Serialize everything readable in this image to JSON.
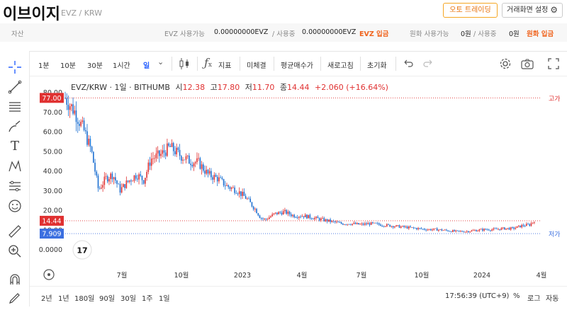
{
  "header": {
    "coin_name": "이브이지",
    "pair": "EVZ / KRW",
    "auto_trading_label": "오토 트레이딩",
    "screen_settings_label": "거래화면 설정"
  },
  "asset_bar": {
    "asset_label": "자산",
    "evz_available_label": "EVZ 사용가능",
    "evz_available_value": "0.00000000EVZ",
    "evz_in_use_label": "/ 사용중",
    "evz_in_use_value": "0.00000000EVZ",
    "evz_deposit_label": "EVZ 입금",
    "krw_available_label": "원화 사용가능",
    "krw_available_value": "0원",
    "krw_in_use_label": "/ 사용중",
    "krw_in_use_value": "0원",
    "krw_deposit_label": "원화 입금"
  },
  "toolbar": {
    "intervals": [
      "1분",
      "10분",
      "30분",
      "1시간",
      "일"
    ],
    "active_interval": "일",
    "indicator_label": "지표",
    "not_concluded_label": "미체결",
    "avg_price_label": "평균매수가",
    "refresh_label": "새로고침",
    "reset_label": "초기화"
  },
  "legend": {
    "title": "EVZ/KRW · 1일 · BITHUMB",
    "open_label": "시",
    "open_value": "12.38",
    "high_label": "고",
    "high_value": "17.80",
    "low_label": "저",
    "low_value": "11.70",
    "close_label": "종",
    "close_value": "14.44",
    "change": "+2.060 (+16.64%)"
  },
  "bottom_bar": {
    "ranges": [
      "2년",
      "1년",
      "180일",
      "90일",
      "30일",
      "1주",
      "1일"
    ],
    "time": "17:56:39 (UTC+9)",
    "percent_label": "%",
    "log_label": "로그",
    "auto_label": "자동"
  },
  "colors": {
    "up": "#e03131",
    "down": "#1c6fd1",
    "accent": "#f0641e",
    "high_marker": "#e03131",
    "low_marker": "#3b6fe0"
  },
  "chart_data": {
    "type": "candlestick",
    "y_ticks": [
      "80.00",
      "70.00",
      "60.00",
      "50.00",
      "40.00",
      "30.00",
      "20.00",
      "10.00",
      "0.0000"
    ],
    "y_tick_values": [
      80,
      70,
      60,
      50,
      40,
      30,
      20,
      10,
      0
    ],
    "x_ticks": [
      "7월",
      "10월",
      "2023",
      "4월",
      "7월",
      "10월",
      "2024",
      "4월"
    ],
    "price_markers": [
      {
        "label": "77.00",
        "value": 77.0,
        "kind": "high"
      },
      {
        "label": "14.44",
        "value": 14.44,
        "kind": "current"
      },
      {
        "label": "7.909",
        "value": 7.909,
        "kind": "low"
      }
    ],
    "right_labels": {
      "high": "고가",
      "low": "저가"
    },
    "trend": [
      [
        0.0,
        77
      ],
      [
        0.02,
        70
      ],
      [
        0.04,
        60
      ],
      [
        0.055,
        50
      ],
      [
        0.07,
        30
      ],
      [
        0.085,
        36
      ],
      [
        0.1,
        38
      ],
      [
        0.115,
        30
      ],
      [
        0.13,
        34
      ],
      [
        0.15,
        38
      ],
      [
        0.165,
        35
      ],
      [
        0.18,
        46
      ],
      [
        0.2,
        48
      ],
      [
        0.22,
        52
      ],
      [
        0.24,
        48
      ],
      [
        0.26,
        45
      ],
      [
        0.28,
        44
      ],
      [
        0.3,
        38
      ],
      [
        0.32,
        36
      ],
      [
        0.34,
        32
      ],
      [
        0.36,
        30
      ],
      [
        0.38,
        26
      ],
      [
        0.4,
        20
      ],
      [
        0.41,
        16
      ],
      [
        0.42,
        15
      ],
      [
        0.44,
        18
      ],
      [
        0.46,
        19
      ],
      [
        0.48,
        17
      ],
      [
        0.5,
        17
      ],
      [
        0.52,
        16
      ],
      [
        0.54,
        15
      ],
      [
        0.56,
        14
      ],
      [
        0.58,
        13
      ],
      [
        0.6,
        13
      ],
      [
        0.62,
        12.5
      ],
      [
        0.64,
        13
      ],
      [
        0.66,
        12.5
      ],
      [
        0.68,
        12
      ],
      [
        0.7,
        11.5
      ],
      [
        0.72,
        11
      ],
      [
        0.74,
        10.5
      ],
      [
        0.76,
        10
      ],
      [
        0.78,
        10
      ],
      [
        0.8,
        9.5
      ],
      [
        0.82,
        9
      ],
      [
        0.84,
        9
      ],
      [
        0.86,
        9.5
      ],
      [
        0.88,
        10
      ],
      [
        0.9,
        10
      ],
      [
        0.92,
        10.5
      ],
      [
        0.94,
        10.5
      ],
      [
        0.96,
        12
      ],
      [
        0.975,
        12.4
      ],
      [
        0.985,
        14.44
      ]
    ]
  }
}
